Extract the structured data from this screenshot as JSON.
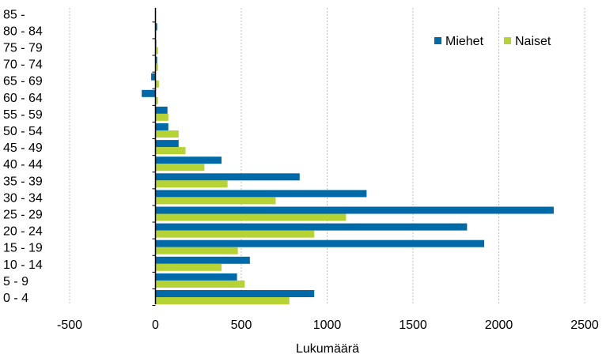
{
  "chart_data": {
    "type": "bar",
    "orientation": "horizontal",
    "categories": [
      "0 - 4",
      "5 - 9",
      "10 - 14",
      "15 - 19",
      "20 - 24",
      "25 - 29",
      "30 - 34",
      "35 - 39",
      "40 - 44",
      "45 - 49",
      "50 - 54",
      "55 - 59",
      "60 - 64",
      "65 - 69",
      "70 - 74",
      "75 - 79",
      "80 - 84",
      "85 -"
    ],
    "series": [
      {
        "name": "Miehet",
        "color": "#006aa8",
        "values": [
          925,
          475,
          550,
          1915,
          1815,
          2320,
          1230,
          840,
          385,
          135,
          75,
          70,
          -80,
          -25,
          10,
          5,
          10,
          0
        ]
      },
      {
        "name": "Naiset",
        "color": "#b5d334",
        "values": [
          780,
          520,
          385,
          480,
          925,
          1110,
          700,
          420,
          285,
          175,
          135,
          75,
          15,
          20,
          15,
          15,
          5,
          0
        ]
      }
    ],
    "xlabel": "Lukumäärä",
    "ylabel": "",
    "xlim": [
      -500,
      2500
    ],
    "xticks": [
      -500,
      0,
      500,
      1000,
      1500,
      2000,
      2500
    ],
    "grid": "vertical-dashed",
    "legend_position": "top-right"
  }
}
